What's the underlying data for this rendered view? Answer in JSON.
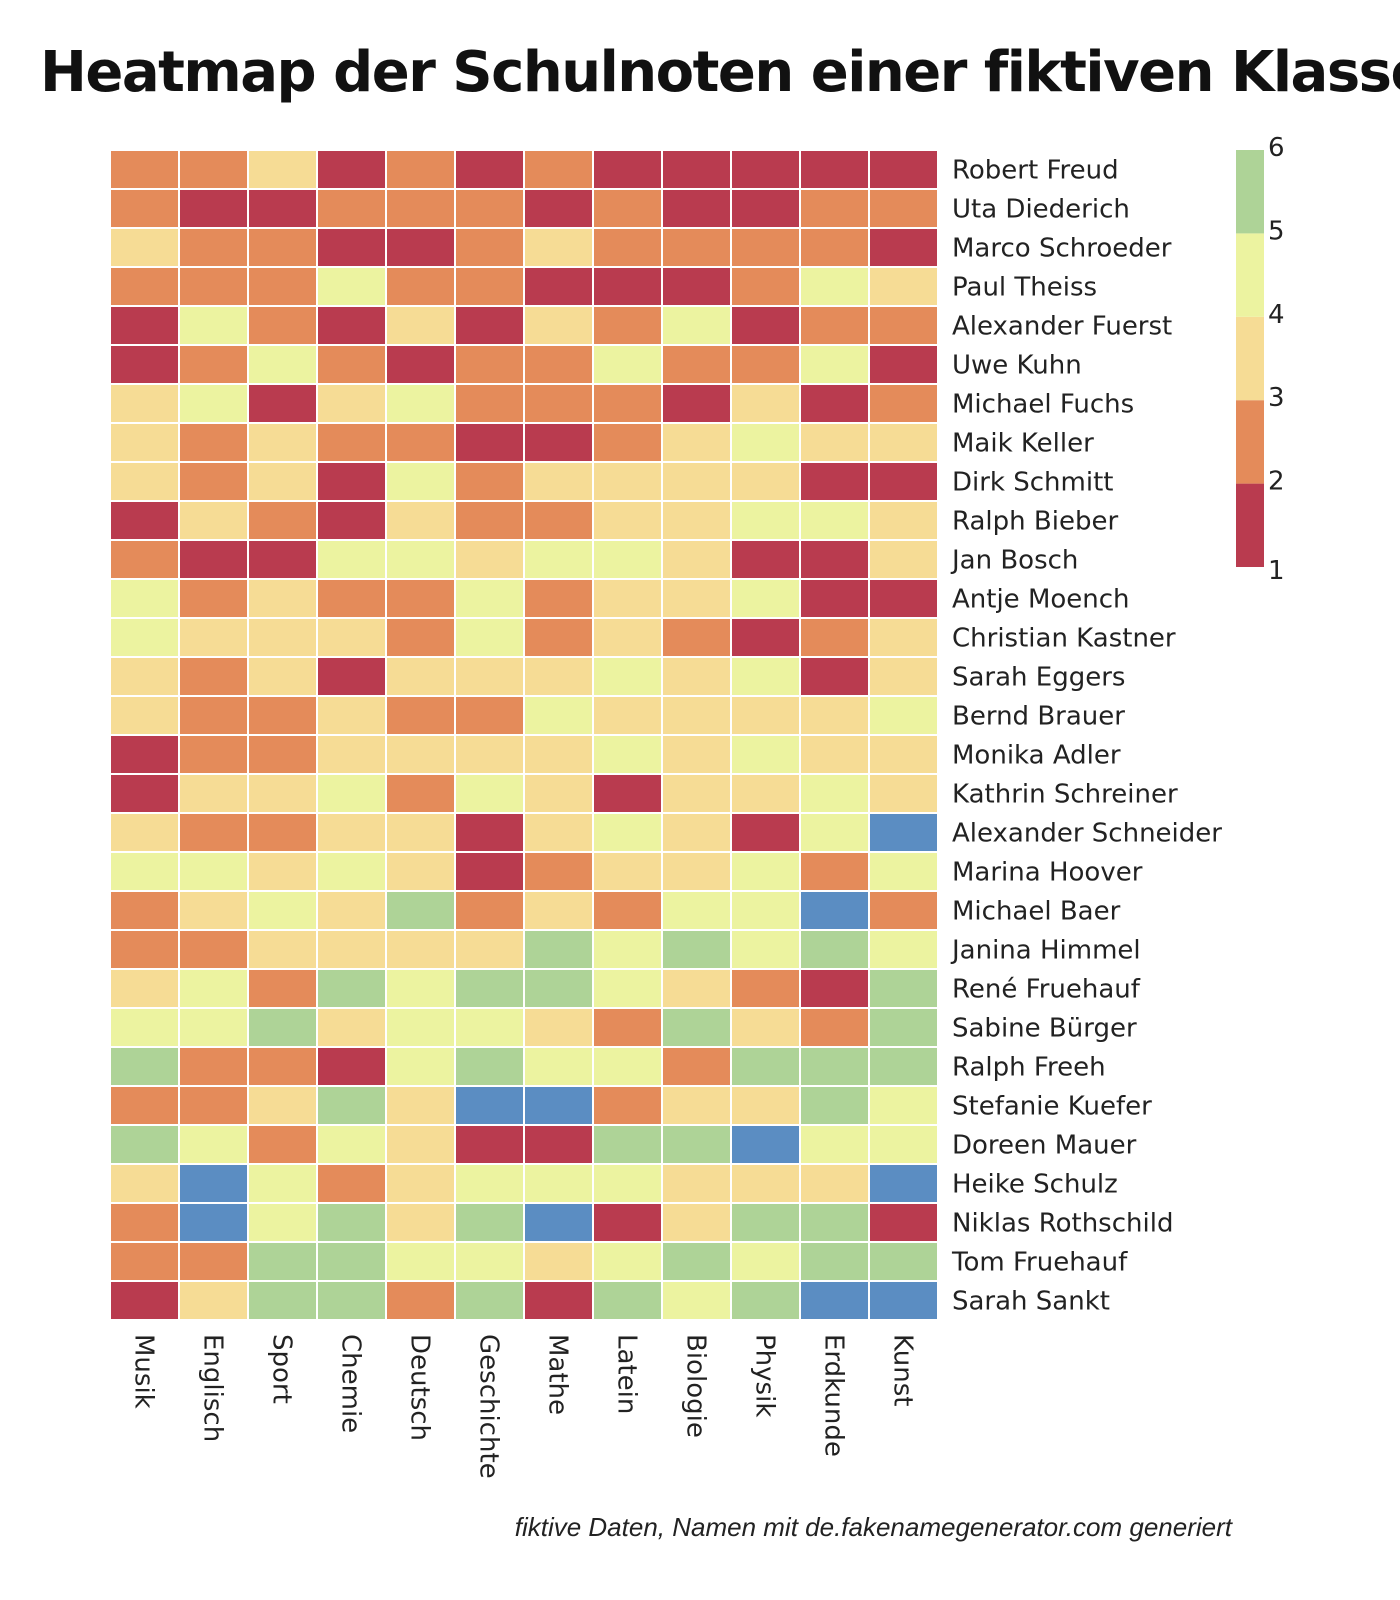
{
  "chart_data": {
    "type": "heatmap",
    "title": "Heatmap der Schulnoten einer fiktiven Klasse",
    "columns": [
      "Musik",
      "Englisch",
      "Sport",
      "Chemie",
      "Deutsch",
      "Geschichte",
      "Mathe",
      "Latein",
      "Biologie",
      "Physik",
      "Erdkunde",
      "Kunst"
    ],
    "rows": [
      "Robert Freud",
      "Uta Diederich",
      "Marco Schroeder",
      "Paul Theiss",
      "Alexander Fuerst",
      "Uwe Kuhn",
      "Michael Fuchs",
      "Maik Keller",
      "Dirk Schmitt",
      "Ralph Bieber",
      "Jan Bosch",
      "Antje Moench",
      "Christian Kastner",
      "Sarah Eggers",
      "Bernd Brauer",
      "Monika Adler",
      "Kathrin Schreiner",
      "Alexander Schneider",
      "Marina Hoover",
      "Michael Baer",
      "Janina Himmel",
      "René Fruehauf",
      "Sabine Bürger",
      "Ralph Freeh",
      "Stefanie Kuefer",
      "Doreen Mauer",
      "Heike Schulz",
      "Niklas Rothschild",
      "Tom Fruehauf",
      "Sarah Sankt"
    ],
    "values": [
      [
        2,
        2,
        3,
        1,
        2,
        1,
        2,
        1,
        1,
        1,
        1,
        1
      ],
      [
        2,
        1,
        1,
        2,
        2,
        2,
        1,
        2,
        1,
        1,
        2,
        2
      ],
      [
        3,
        2,
        2,
        1,
        1,
        2,
        3,
        2,
        2,
        2,
        2,
        1
      ],
      [
        2,
        2,
        2,
        4,
        2,
        2,
        1,
        1,
        1,
        2,
        4,
        3
      ],
      [
        1,
        4,
        2,
        1,
        3,
        1,
        3,
        2,
        4,
        1,
        2,
        2
      ],
      [
        1,
        2,
        4,
        2,
        1,
        2,
        2,
        4,
        2,
        2,
        4,
        1
      ],
      [
        3,
        4,
        1,
        3,
        4,
        2,
        2,
        2,
        1,
        3,
        1,
        2
      ],
      [
        3,
        2,
        3,
        2,
        2,
        1,
        1,
        2,
        3,
        4,
        3,
        3
      ],
      [
        3,
        2,
        3,
        1,
        4,
        2,
        3,
        3,
        3,
        3,
        1,
        1
      ],
      [
        1,
        3,
        2,
        1,
        3,
        2,
        2,
        3,
        3,
        4,
        4,
        3
      ],
      [
        2,
        1,
        1,
        4,
        4,
        3,
        4,
        4,
        3,
        1,
        1,
        3
      ],
      [
        4,
        2,
        3,
        2,
        2,
        4,
        2,
        3,
        3,
        4,
        1,
        1
      ],
      [
        4,
        3,
        3,
        3,
        2,
        4,
        2,
        3,
        2,
        1,
        2,
        3
      ],
      [
        3,
        2,
        3,
        1,
        3,
        3,
        3,
        4,
        3,
        4,
        1,
        3
      ],
      [
        3,
        2,
        2,
        3,
        2,
        2,
        4,
        3,
        3,
        3,
        3,
        4
      ],
      [
        1,
        2,
        2,
        3,
        3,
        3,
        3,
        4,
        3,
        4,
        3,
        3
      ],
      [
        1,
        3,
        3,
        4,
        2,
        4,
        3,
        1,
        3,
        3,
        4,
        3
      ],
      [
        3,
        2,
        2,
        3,
        3,
        1,
        3,
        4,
        3,
        1,
        4,
        6
      ],
      [
        4,
        4,
        3,
        4,
        3,
        1,
        2,
        3,
        3,
        4,
        2,
        4
      ],
      [
        2,
        3,
        4,
        3,
        5,
        2,
        3,
        2,
        4,
        4,
        6,
        2
      ],
      [
        2,
        2,
        3,
        3,
        3,
        3,
        5,
        4,
        5,
        4,
        5,
        4
      ],
      [
        3,
        4,
        2,
        5,
        4,
        5,
        5,
        4,
        3,
        2,
        1,
        5
      ],
      [
        4,
        4,
        5,
        3,
        4,
        4,
        3,
        2,
        5,
        3,
        2,
        5
      ],
      [
        5,
        2,
        2,
        1,
        4,
        5,
        4,
        4,
        2,
        5,
        5,
        5
      ],
      [
        2,
        2,
        3,
        5,
        3,
        6,
        6,
        2,
        3,
        3,
        5,
        4
      ],
      [
        5,
        4,
        2,
        4,
        3,
        1,
        1,
        5,
        5,
        6,
        4,
        4
      ],
      [
        3,
        6,
        4,
        2,
        3,
        4,
        4,
        4,
        3,
        3,
        3,
        6
      ],
      [
        2,
        6,
        4,
        5,
        3,
        5,
        6,
        1,
        3,
        5,
        5,
        1
      ],
      [
        2,
        2,
        5,
        5,
        4,
        4,
        3,
        4,
        5,
        4,
        5,
        5
      ],
      [
        1,
        3,
        5,
        5,
        2,
        5,
        1,
        5,
        4,
        5,
        6,
        6
      ]
    ],
    "legend": {
      "position": "right",
      "range": [
        1,
        6
      ],
      "ticks": [
        "1",
        "2",
        "3",
        "4",
        "5",
        "6"
      ],
      "colors": {
        "1": "#b93b4f",
        "2": "#e48b5a",
        "3": "#f6dc95",
        "4": "#ecf3a0",
        "5": "#aed397",
        "6": "#5b8dc2"
      }
    }
  },
  "footer": {
    "note": "fiktive Daten, Namen mit de.fakenamegenerator.com generiert"
  }
}
